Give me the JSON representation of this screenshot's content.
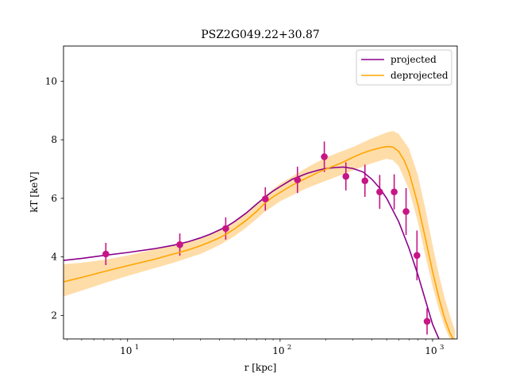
{
  "chart_data": {
    "type": "line",
    "title": "PSZ2G049.22+30.87",
    "xlabel": "r [kpc]",
    "ylabel": "kT [keV]",
    "xscale": "log",
    "xlim": [
      3.8,
      1450
    ],
    "ylim": [
      1.2,
      11.2
    ],
    "xticks": [
      {
        "value": 10,
        "label": "10",
        "exp": "1"
      },
      {
        "value": 100,
        "label": "10",
        "exp": "2"
      },
      {
        "value": 1000,
        "label": "10",
        "exp": "3"
      }
    ],
    "yticks": [
      2,
      4,
      6,
      8,
      10
    ],
    "grid": false,
    "legend_position": "top-right",
    "colors": {
      "projected": "#8b008b",
      "deprojected": "#ffa500",
      "band": "#ffd79a",
      "points": "#c71585"
    },
    "series": [
      {
        "name": "projected",
        "kind": "line",
        "x": [
          3.8,
          5,
          7,
          10,
          15,
          20,
          25,
          30,
          35,
          40,
          45,
          50,
          60,
          70,
          80,
          90,
          100,
          120,
          150,
          180,
          200,
          230,
          260,
          300,
          350,
          400,
          450,
          500,
          600,
          700,
          800,
          900,
          1000,
          1100,
          1200
        ],
        "y": [
          3.88,
          3.95,
          4.05,
          4.15,
          4.28,
          4.4,
          4.52,
          4.65,
          4.78,
          4.92,
          5.05,
          5.2,
          5.5,
          5.8,
          6.05,
          6.25,
          6.4,
          6.65,
          6.85,
          6.97,
          7.02,
          7.05,
          7.07,
          7.02,
          6.9,
          6.65,
          6.35,
          6.0,
          5.2,
          4.3,
          3.4,
          2.5,
          1.7,
          1.2,
          0.8
        ]
      },
      {
        "name": "deprojected",
        "kind": "line",
        "x": [
          3.8,
          5,
          7,
          10,
          15,
          20,
          25,
          30,
          35,
          40,
          45,
          50,
          60,
          70,
          80,
          90,
          100,
          120,
          150,
          180,
          200,
          250,
          300,
          350,
          400,
          450,
          500,
          550,
          600,
          650,
          700,
          800,
          900,
          1000,
          1100,
          1200,
          1300,
          1400
        ],
        "y": [
          3.15,
          3.3,
          3.5,
          3.7,
          3.92,
          4.1,
          4.24,
          4.38,
          4.52,
          4.65,
          4.8,
          4.95,
          5.25,
          5.55,
          5.85,
          6.05,
          6.2,
          6.45,
          6.7,
          6.9,
          7.0,
          7.2,
          7.4,
          7.55,
          7.65,
          7.72,
          7.77,
          7.75,
          7.6,
          7.3,
          6.9,
          5.8,
          4.6,
          3.5,
          2.6,
          1.9,
          1.4,
          1.1
        ]
      }
    ],
    "band": {
      "name": "deprojected uncertainty",
      "x": [
        3.8,
        5,
        7,
        10,
        20,
        30,
        40,
        50,
        60,
        80,
        100,
        150,
        200,
        300,
        400,
        500,
        550,
        600,
        700,
        800,
        900,
        1000,
        1100,
        1200,
        1300,
        1400
      ],
      "lower": [
        2.65,
        2.85,
        3.1,
        3.35,
        3.8,
        4.1,
        4.4,
        4.7,
        5.0,
        5.55,
        5.9,
        6.35,
        6.6,
        6.95,
        7.2,
        7.35,
        7.3,
        7.1,
        6.3,
        5.2,
        4.0,
        3.0,
        2.2,
        1.6,
        1.2,
        0.9
      ],
      "upper": [
        3.75,
        3.8,
        3.9,
        4.05,
        4.4,
        4.65,
        4.9,
        5.2,
        5.5,
        6.1,
        6.5,
        7.05,
        7.4,
        7.75,
        8.05,
        8.25,
        8.3,
        8.2,
        7.7,
        6.8,
        5.6,
        4.4,
        3.4,
        2.6,
        2.0,
        1.5
      ]
    },
    "points": {
      "name": "data",
      "x": [
        7.2,
        22,
        44,
        80,
        130,
        195,
        270,
        360,
        450,
        560,
        670,
        790,
        920
      ],
      "y": [
        4.1,
        4.42,
        4.97,
        5.98,
        6.63,
        7.42,
        6.75,
        6.6,
        6.22,
        6.22,
        5.55,
        4.05,
        1.8
      ],
      "yerr": [
        0.38,
        0.38,
        0.38,
        0.4,
        0.45,
        0.52,
        0.48,
        0.55,
        0.58,
        0.6,
        0.8,
        0.85,
        0.45
      ]
    }
  }
}
